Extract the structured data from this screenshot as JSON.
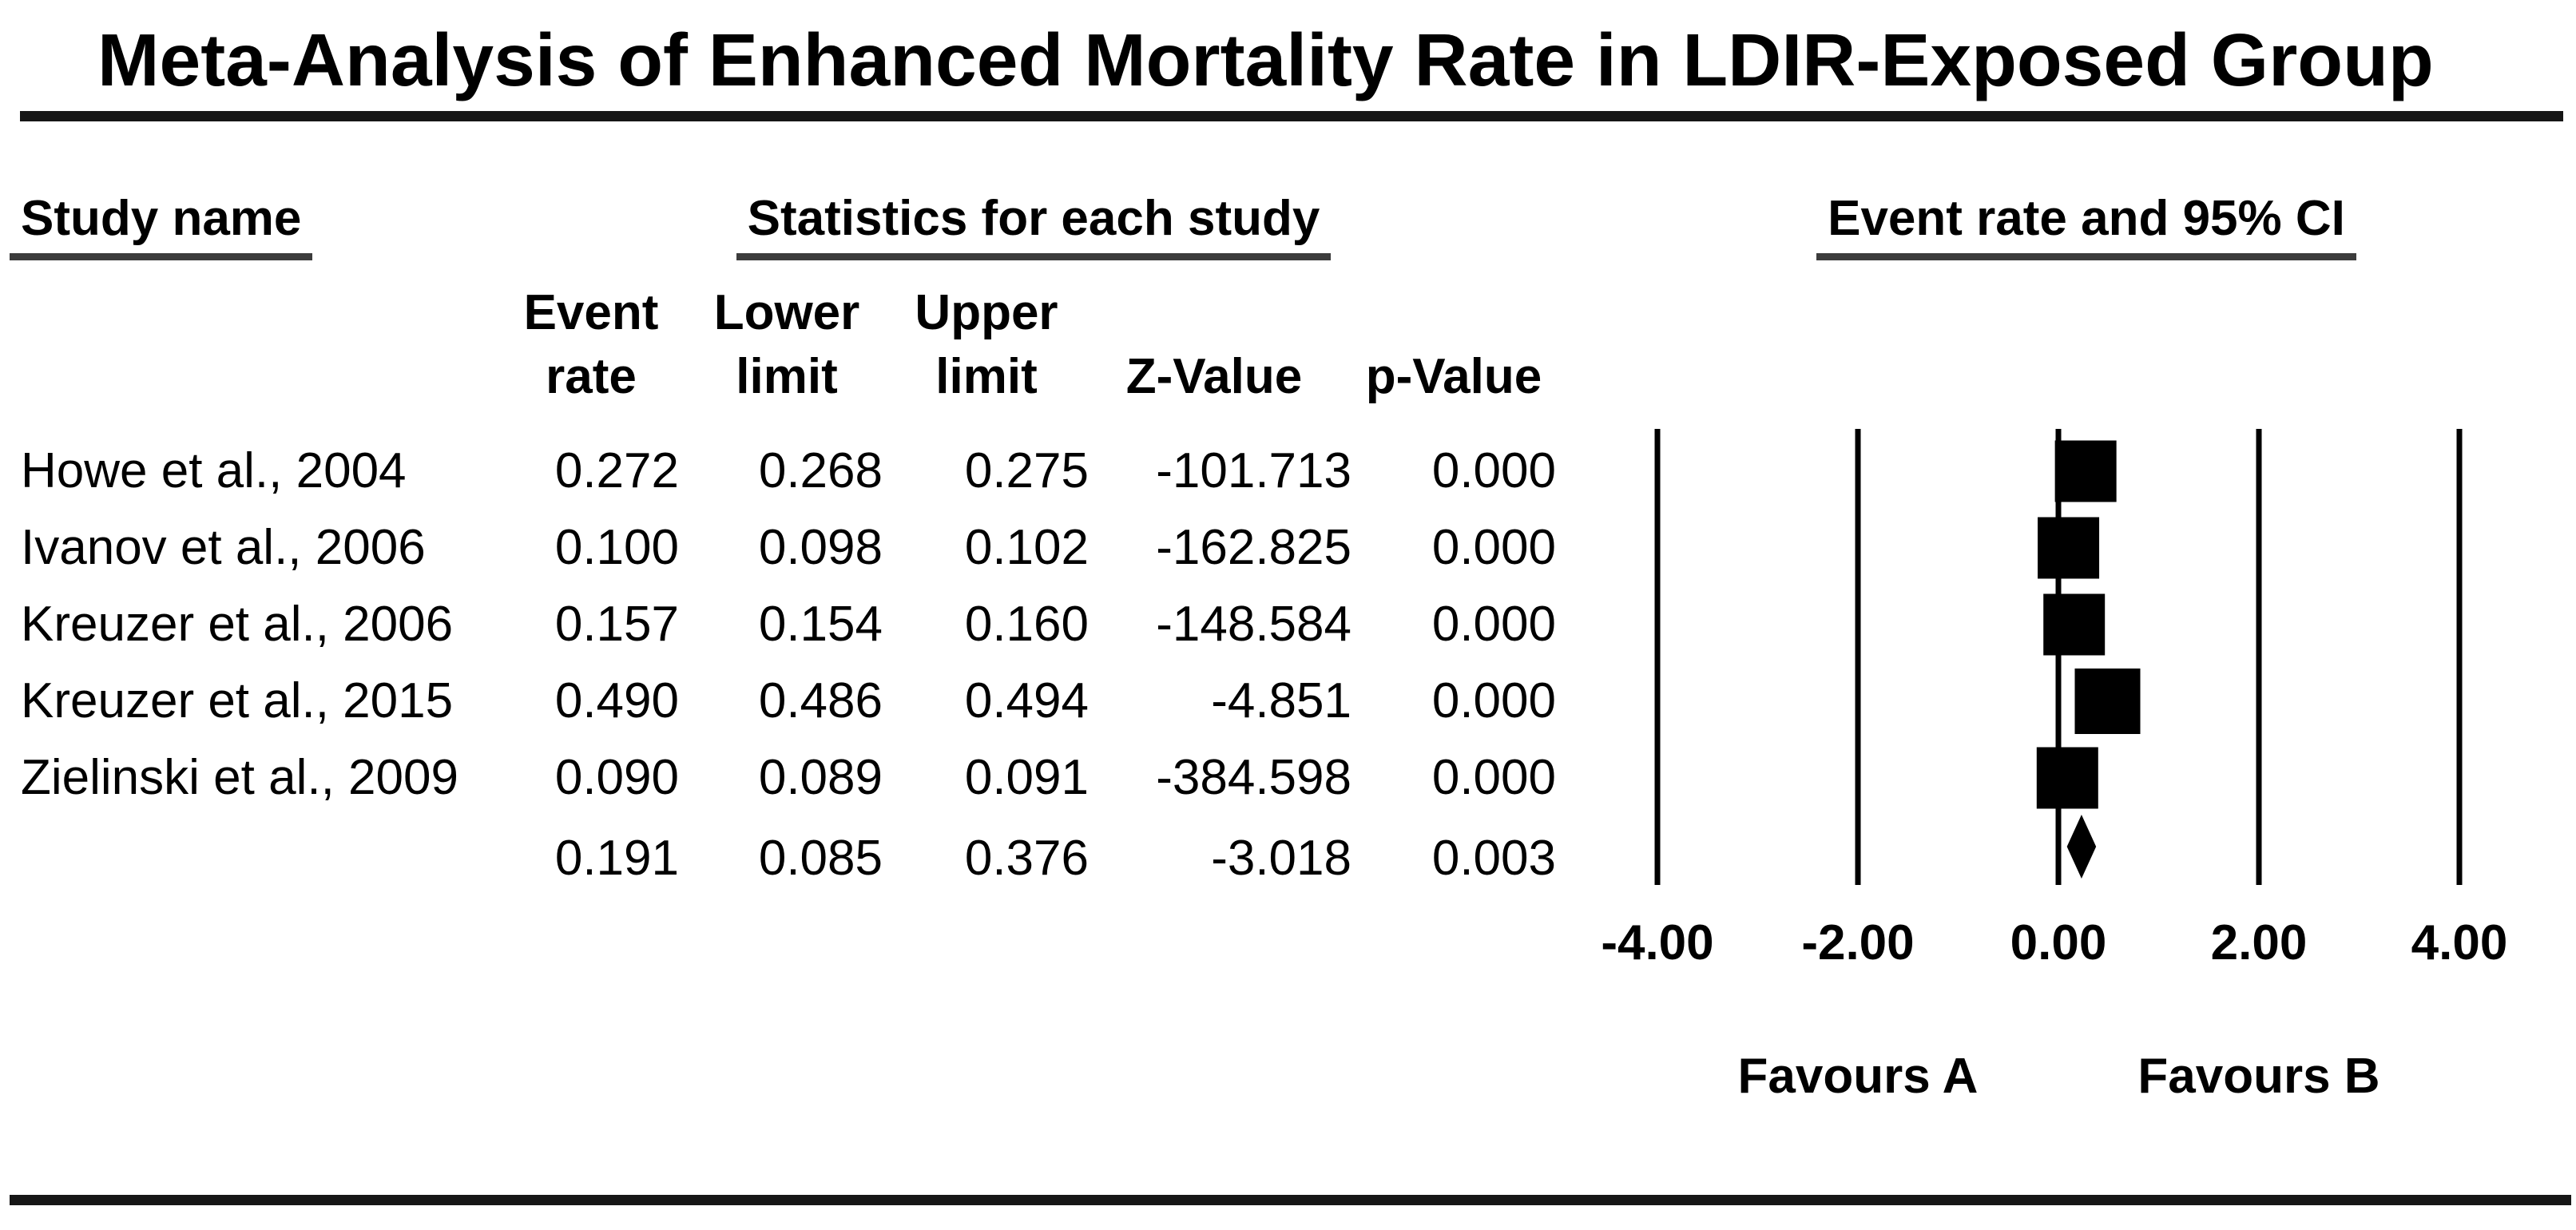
{
  "title": "Meta-Analysis of Enhanced Mortality Rate in LDIR-Exposed Group",
  "headers": {
    "study": "Study name",
    "stats": "Statistics for each study",
    "plot": "Event rate and 95% CI"
  },
  "sub_headers": {
    "event_rate": [
      "Event",
      "rate"
    ],
    "lower_limit": [
      "Lower",
      "limit"
    ],
    "upper_limit": [
      "Upper",
      "limit"
    ],
    "z_value": "Z-Value",
    "p_value": "p-Value"
  },
  "rows": [
    {
      "study": "Howe et al., 2004",
      "event_rate": "0.272",
      "lower": "0.268",
      "upper": "0.275",
      "z": "-101.713",
      "p": "0.000"
    },
    {
      "study": "Ivanov et al., 2006",
      "event_rate": "0.100",
      "lower": "0.098",
      "upper": "0.102",
      "z": "-162.825",
      "p": "0.000"
    },
    {
      "study": "Kreuzer et al., 2006",
      "event_rate": "0.157",
      "lower": "0.154",
      "upper": "0.160",
      "z": "-148.584",
      "p": "0.000"
    },
    {
      "study": "Kreuzer et al., 2015",
      "event_rate": "0.490",
      "lower": "0.486",
      "upper": "0.494",
      "z": "-4.851",
      "p": "0.000"
    },
    {
      "study": "Zielinski et al., 2009",
      "event_rate": "0.090",
      "lower": "0.089",
      "upper": "0.091",
      "z": "-384.598",
      "p": "0.000"
    }
  ],
  "summary_row": {
    "study": "",
    "event_rate": "0.191",
    "lower": "0.085",
    "upper": "0.376",
    "z": "-3.018",
    "p": "0.003"
  },
  "axis": {
    "tick_labels": [
      "-4.00",
      "-2.00",
      "0.00",
      "2.00",
      "4.00"
    ],
    "tick_values": [
      -4,
      -2,
      0,
      2,
      4
    ]
  },
  "footer": {
    "favours_a": "Favours A",
    "favours_b": "Favours B"
  },
  "colors": {
    "ink": "#000000",
    "background": "#ffffff",
    "rule": "#161616",
    "underline": "#3c3c3c"
  },
  "chart_data": {
    "type": "forest",
    "title": "Meta-Analysis of Enhanced Mortality Rate in LDIR-Exposed Group",
    "effect_measure": "Event rate and 95% CI",
    "x_ticks": [
      -4,
      -2,
      0,
      2,
      4
    ],
    "x_tick_labels": [
      "-4.00",
      "-2.00",
      "0.00",
      "2.00",
      "4.00"
    ],
    "xlim": [
      -5,
      5
    ],
    "studies": [
      {
        "name": "Howe et al., 2004",
        "event_rate": 0.272,
        "lower": 0.268,
        "upper": 0.275,
        "z": -101.713,
        "p": 0.0
      },
      {
        "name": "Ivanov et al., 2006",
        "event_rate": 0.1,
        "lower": 0.098,
        "upper": 0.102,
        "z": -162.825,
        "p": 0.0
      },
      {
        "name": "Kreuzer et al., 2006",
        "event_rate": 0.157,
        "lower": 0.154,
        "upper": 0.16,
        "z": -148.584,
        "p": 0.0
      },
      {
        "name": "Kreuzer et al., 2015",
        "event_rate": 0.49,
        "lower": 0.486,
        "upper": 0.494,
        "z": -4.851,
        "p": 0.0
      },
      {
        "name": "Zielinski et al., 2009",
        "event_rate": 0.09,
        "lower": 0.089,
        "upper": 0.091,
        "z": -384.598,
        "p": 0.0
      }
    ],
    "summary": {
      "event_rate": 0.191,
      "lower": 0.085,
      "upper": 0.376,
      "z": -3.018,
      "p": 0.003
    },
    "marker": "square",
    "summary_marker": "diamond",
    "legend": false,
    "grid": "vertical-reference-lines",
    "footer_labels": [
      "Favours A",
      "Favours B"
    ]
  }
}
